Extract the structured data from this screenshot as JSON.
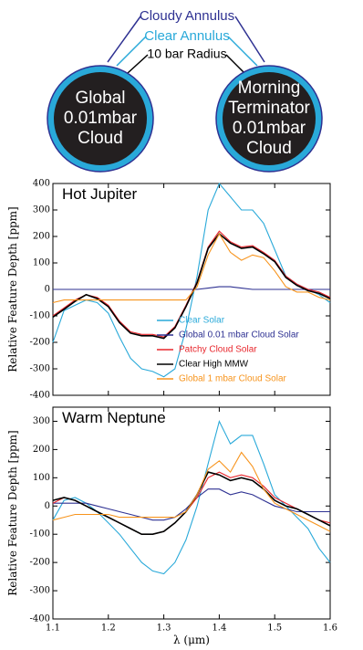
{
  "diagram": {
    "cloudy_annulus": "Cloudy Annulus",
    "clear_annulus": "Clear Annulus",
    "radius": "10 bar Radius",
    "left_label": [
      "Global",
      "0.01mbar",
      "Cloud"
    ],
    "right_label": [
      "Morning",
      "Terminator",
      "0.01mbar",
      "Cloud"
    ]
  },
  "chart_data": [
    {
      "type": "line",
      "title": "Hot Jupiter",
      "y_label": "Relative Feature Depth [ppm]",
      "x": [
        1.1,
        1.12,
        1.14,
        1.16,
        1.18,
        1.2,
        1.22,
        1.24,
        1.26,
        1.28,
        1.3,
        1.32,
        1.34,
        1.36,
        1.38,
        1.4,
        1.42,
        1.44,
        1.46,
        1.48,
        1.5,
        1.52,
        1.54,
        1.56,
        1.58,
        1.6
      ],
      "xlim": [
        1.1,
        1.6
      ],
      "xticks": [
        1.1,
        1.2,
        1.3,
        1.4,
        1.5,
        1.6
      ],
      "ylim": [
        -400,
        400
      ],
      "yticks": [
        -400,
        -300,
        -200,
        -100,
        0,
        100,
        200,
        300,
        400
      ],
      "legend": "lower right",
      "series": [
        {
          "name": "Clear Solar",
          "color": "#29a9d9",
          "values": [
            -200,
            -80,
            -60,
            -40,
            -50,
            -90,
            -180,
            -260,
            -300,
            -310,
            -330,
            -300,
            -150,
            50,
            300,
            400,
            350,
            300,
            300,
            250,
            150,
            50,
            20,
            0,
            -20,
            -50
          ]
        },
        {
          "name": "Global 0.01 mbar Cloud Solar",
          "color": "#2e3192",
          "values": [
            0,
            0,
            0,
            0,
            0,
            0,
            0,
            0,
            0,
            0,
            0,
            0,
            0,
            0,
            5,
            10,
            10,
            5,
            0,
            0,
            0,
            0,
            0,
            0,
            0,
            0
          ]
        },
        {
          "name": "Patchy Cloud Solar",
          "color": "#e8262c",
          "values": [
            -100,
            -70,
            -40,
            -20,
            -30,
            -60,
            -120,
            -160,
            -170,
            -170,
            -180,
            -140,
            -60,
            30,
            160,
            220,
            180,
            160,
            165,
            140,
            110,
            50,
            20,
            0,
            -10,
            -30
          ]
        },
        {
          "name": "Clear High MMW",
          "color": "#000000",
          "values": [
            -105,
            -75,
            -45,
            -20,
            -35,
            -65,
            -125,
            -165,
            -175,
            -175,
            -185,
            -145,
            -65,
            25,
            155,
            210,
            175,
            155,
            160,
            135,
            105,
            45,
            15,
            -5,
            -15,
            -35
          ]
        },
        {
          "name": "Global 1 mbar Cloud Solar",
          "color": "#f7941d",
          "values": [
            -50,
            -40,
            -40,
            -40,
            -40,
            -40,
            -40,
            -40,
            -40,
            -40,
            -40,
            -40,
            -40,
            10,
            130,
            210,
            140,
            110,
            130,
            120,
            70,
            10,
            -10,
            -10,
            -30,
            -40
          ]
        }
      ]
    },
    {
      "type": "line",
      "title": "Warm Neptune",
      "y_label": "Relative Feature Depth [ppm]",
      "x_label": "λ (μm)",
      "x": [
        1.1,
        1.12,
        1.14,
        1.16,
        1.18,
        1.2,
        1.22,
        1.24,
        1.26,
        1.28,
        1.3,
        1.32,
        1.34,
        1.36,
        1.38,
        1.4,
        1.42,
        1.44,
        1.46,
        1.48,
        1.5,
        1.52,
        1.54,
        1.56,
        1.58,
        1.6
      ],
      "xlim": [
        1.1,
        1.6
      ],
      "xticks": [
        1.1,
        1.2,
        1.3,
        1.4,
        1.5,
        1.6
      ],
      "ylim": [
        -400,
        350
      ],
      "yticks": [
        -400,
        -300,
        -200,
        -100,
        0,
        100,
        200,
        300
      ],
      "series": [
        {
          "name": "Clear Solar",
          "color": "#29a9d9",
          "values": [
            -50,
            20,
            30,
            10,
            -20,
            -60,
            -100,
            -150,
            -200,
            -230,
            -240,
            -200,
            -120,
            0,
            150,
            300,
            220,
            250,
            250,
            150,
            40,
            0,
            -40,
            -80,
            -150,
            -200
          ]
        },
        {
          "name": "Global 0.01 mbar Cloud Solar",
          "color": "#2e3192",
          "values": [
            10,
            10,
            10,
            10,
            0,
            -10,
            -20,
            -30,
            -40,
            -50,
            -50,
            -40,
            -10,
            30,
            60,
            60,
            40,
            50,
            40,
            20,
            0,
            -10,
            -20,
            -20,
            -20,
            -20
          ]
        },
        {
          "name": "Patchy Cloud Solar",
          "color": "#e8262c",
          "values": [
            10,
            30,
            20,
            0,
            -20,
            -40,
            -60,
            -80,
            -100,
            -100,
            -90,
            -60,
            -20,
            30,
            100,
            120,
            100,
            110,
            100,
            70,
            30,
            10,
            -10,
            -30,
            -50,
            -60
          ]
        },
        {
          "name": "Clear High MMW",
          "color": "#000000",
          "values": [
            20,
            30,
            20,
            0,
            -20,
            -40,
            -60,
            -80,
            -100,
            -100,
            -90,
            -60,
            -20,
            40,
            120,
            110,
            90,
            100,
            90,
            60,
            20,
            0,
            -10,
            -30,
            -50,
            -70
          ]
        },
        {
          "name": "Global 1 mbar Cloud Solar",
          "color": "#f7941d",
          "values": [
            -50,
            -40,
            -30,
            -30,
            -30,
            -30,
            -40,
            -40,
            -40,
            -40,
            -40,
            -40,
            -20,
            40,
            130,
            160,
            120,
            190,
            140,
            60,
            10,
            -10,
            -30,
            -50,
            -70,
            -90
          ]
        }
      ]
    }
  ]
}
